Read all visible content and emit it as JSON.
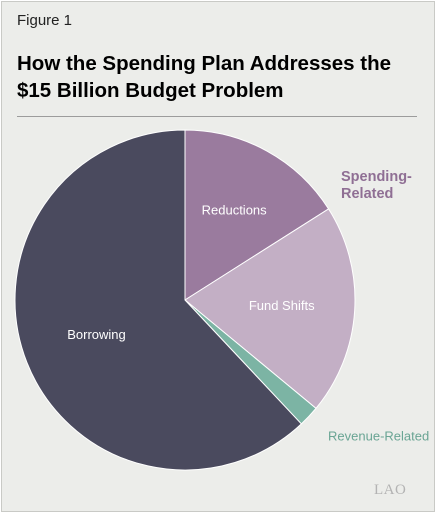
{
  "figure_label": "Figure 1",
  "title": "How the Spending Plan Addresses the $15 Billion Budget Problem",
  "logo": "LAO",
  "chart_data": {
    "type": "pie",
    "title": "How the Spending Plan Addresses the $15 Billion Budget Problem",
    "slices": [
      {
        "label": "Reductions",
        "value": 16,
        "color": "#9a7b9e",
        "label_color": "#ffffff"
      },
      {
        "label": "Fund Shifts",
        "value": 20,
        "color": "#c3afc5",
        "label_color": "#ffffff"
      },
      {
        "label": "Revenue-Related",
        "value": 2,
        "color": "#7cb4a4",
        "label_color": "#6aa594"
      },
      {
        "label": "Borrowing",
        "value": 62,
        "color": "#4a4a5e",
        "label_color": "#ffffff"
      }
    ],
    "groups": [
      {
        "label": "Spending-\nRelated",
        "members": [
          "Reductions",
          "Fund Shifts"
        ],
        "color": "#8f6f94"
      }
    ],
    "start_angle_deg": 0,
    "direction": "clockwise",
    "legend": "none"
  }
}
